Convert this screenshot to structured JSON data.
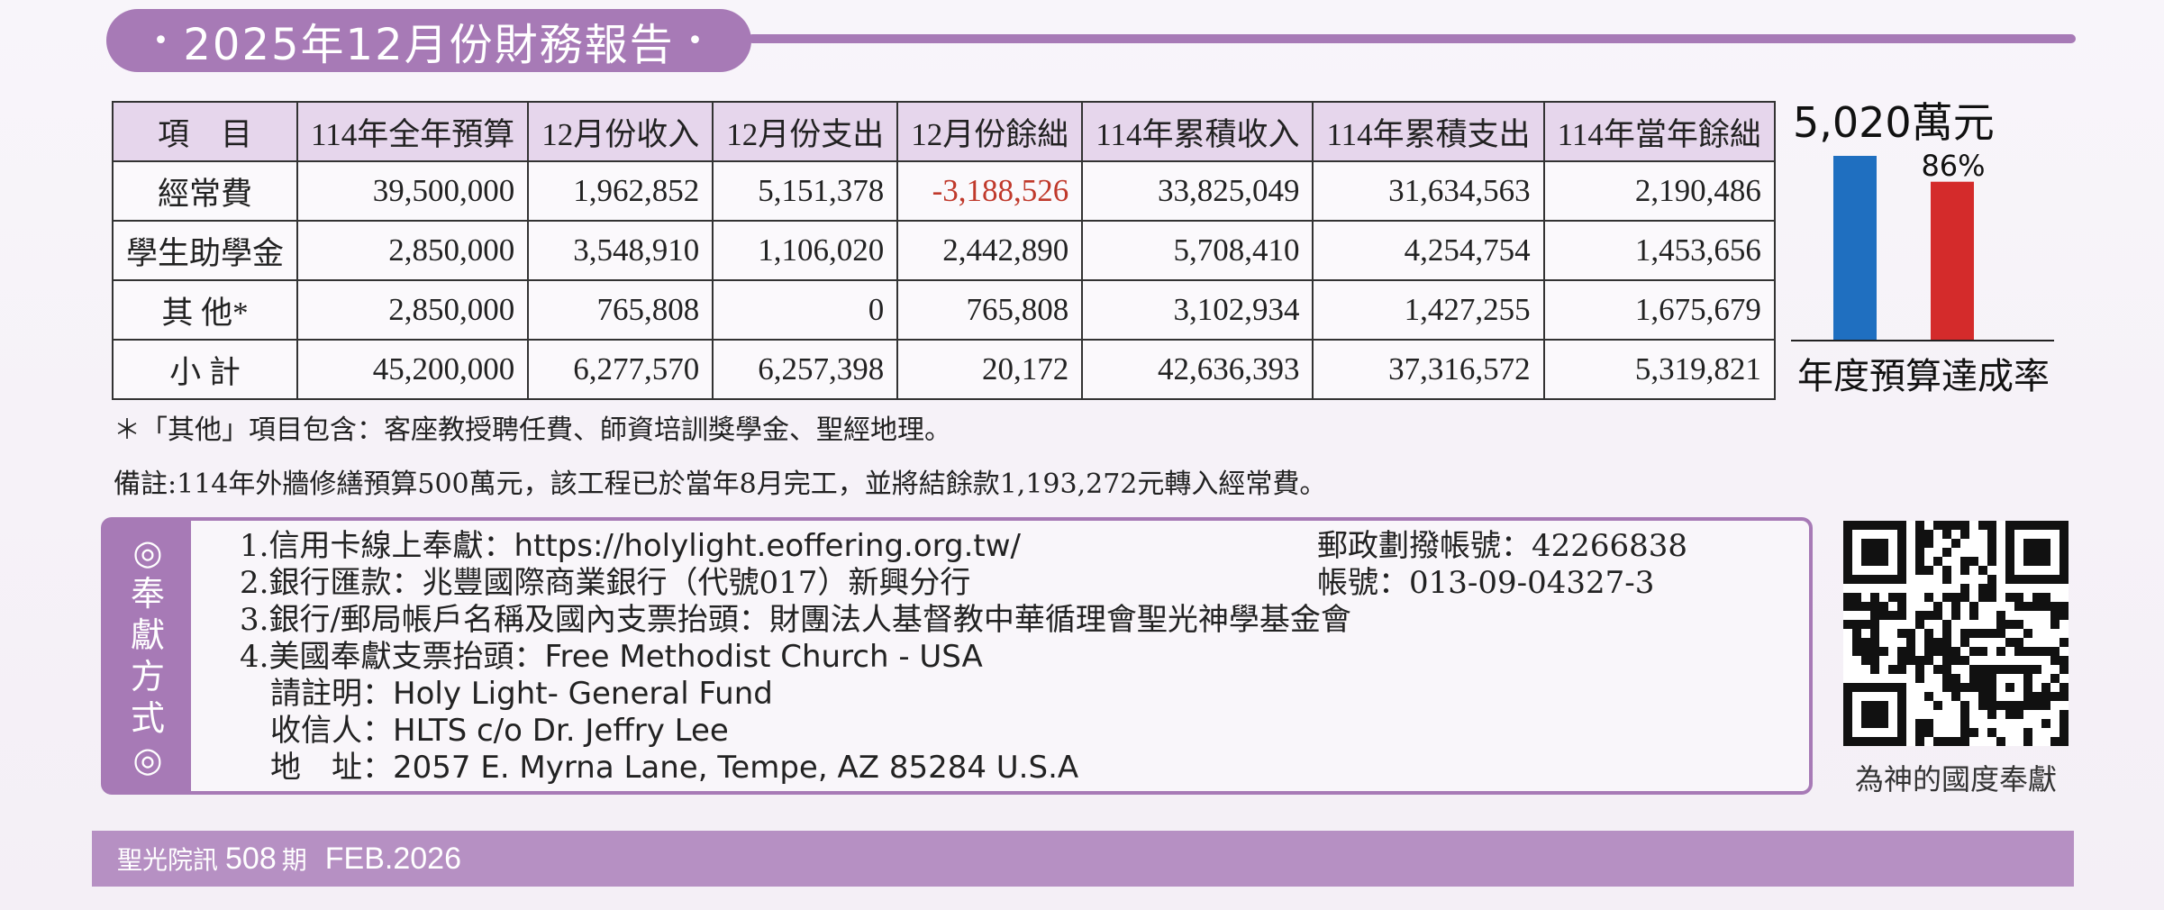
{
  "title": "2025年12月份財務報告",
  "title_dot": "•",
  "table": {
    "headers": [
      "項　目",
      "114年全年預算",
      "12月份收入",
      "12月份支出",
      "12月份餘絀",
      "114年累積收入",
      "114年累積支出",
      "114年當年餘絀"
    ],
    "rows": [
      [
        "經常費",
        "39,500,000",
        "1,962,852",
        "5,151,378",
        "-3,188,526",
        "33,825,049",
        "31,634,563",
        "2,190,486"
      ],
      [
        "學生助學金",
        "2,850,000",
        "3,548,910",
        "1,106,020",
        "2,442,890",
        "5,708,410",
        "4,254,754",
        "1,453,656"
      ],
      [
        "其 他*",
        "2,850,000",
        "765,808",
        "0",
        "765,808",
        "3,102,934",
        "1,427,255",
        "1,675,679"
      ],
      [
        "小 計",
        "45,200,000",
        "6,277,570",
        "6,257,398",
        "20,172",
        "42,636,393",
        "37,316,572",
        "5,319,821"
      ]
    ],
    "negative_color": "#c0392b"
  },
  "chart_data": {
    "type": "bar",
    "categories": [
      "",
      ""
    ],
    "values": [
      100,
      86
    ],
    "colors": [
      "#1f6fc0",
      "#d42b2b"
    ],
    "top_label": "5,020萬元",
    "value_label": "86%",
    "xlabel": "年度預算達成率",
    "ylim": [
      0,
      100
    ]
  },
  "notes": {
    "other_items": "＊「其他」項目包含：客座教授聘任費、師資培訓獎學金、聖經地理。",
    "remark": "備註:114年外牆修繕預算500萬元，該工程已於當年8月完工，並將結餘款1,193,272元轉入經常費。"
  },
  "offering": {
    "tab_label": [
      "◎",
      "奉",
      "獻",
      "方",
      "式",
      "◎"
    ],
    "line1_prefix": "1.信用卡線上奉獻：",
    "line1_url": "https://holylight.eoffering.org.tw/",
    "line1_right": "郵政劃撥帳號：42266838",
    "line2": "2.銀行匯款：兆豐國際商業銀行（代號017）新興分行",
    "line2_right": "帳號：013-09-04327-3",
    "line3": "3.銀行/郵局帳戶名稱及國內支票抬頭：財團法人基督教中華循理會聖光神學基金會",
    "line4_prefix": "4.美國奉獻支票抬頭：",
    "line4_value": "Free Methodist Church - USA",
    "line5_prefix": "　請註明：",
    "line5_value": "Holy Light- General Fund",
    "line6_prefix": "　收信人：",
    "line6_value": "HLTS  c/o Dr. Jeffry Lee",
    "line7_prefix": "　地　址：",
    "line7_value": "2057 E. Myrna Lane, Tempe, AZ 85284 U.S.A"
  },
  "qr_caption": "為神的國度奉獻",
  "footer": {
    "publication": "聖光院訊",
    "issue": "508",
    "issue_unit": "期",
    "date": "FEB.2026"
  }
}
